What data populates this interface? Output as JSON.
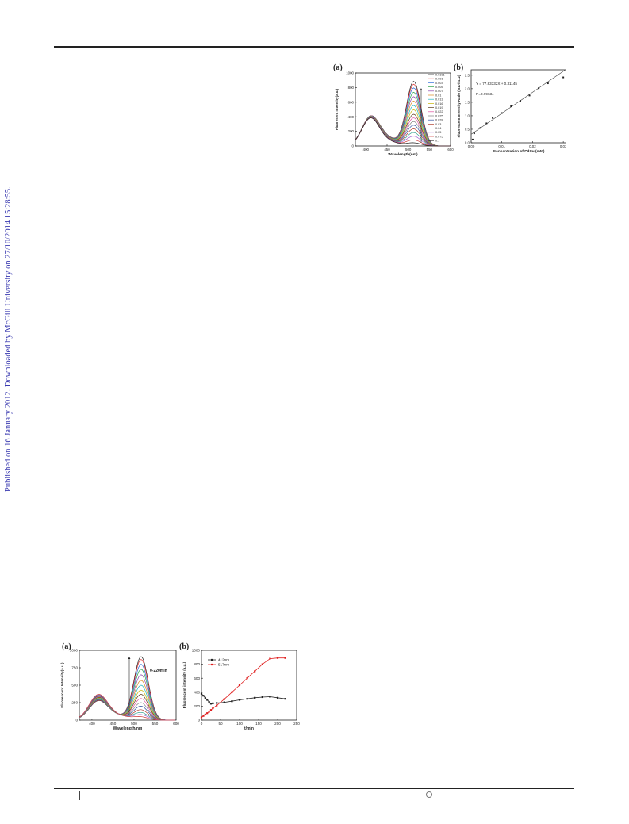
{
  "side_banner": "Published on 16 January 2012. Downloaded by McGill University on 27/10/2014 15:28:55.",
  "figure1": {
    "panel_a": {
      "label": "(a)",
      "chart_data": {
        "type": "line",
        "xlabel": "Wavelength(nm)",
        "ylabel": "Fluoresent Intensity(a.u.)",
        "xlim": [
          375,
          600
        ],
        "ylim": [
          0,
          1000
        ],
        "xticks": [
          400,
          450,
          500,
          550,
          600
        ],
        "yticks": [
          0,
          200,
          400,
          600,
          800,
          1000
        ],
        "legend_position": "top-right",
        "colors": [
          "#222222",
          "#e03030",
          "#2e6fdc",
          "#2aa24a",
          "#8e44ad",
          "#d98a20",
          "#1fb5c0",
          "#c8b400",
          "#5a3a1a",
          "#e050a0",
          "#808080",
          "#3050a0",
          "#b04030",
          "#30a090",
          "#a060d0",
          "#d04040"
        ],
        "series": [
          {
            "name": "0.0101",
            "peak": 880
          },
          {
            "name": "0.001",
            "peak": 840
          },
          {
            "name": "0.003",
            "peak": 790
          },
          {
            "name": "0.005",
            "peak": 730
          },
          {
            "name": "0.007",
            "peak": 670
          },
          {
            "name": "0.01",
            "peak": 610
          },
          {
            "name": "0.013",
            "peak": 550
          },
          {
            "name": "0.016",
            "peak": 490
          },
          {
            "name": "0.019",
            "peak": 430
          },
          {
            "name": "0.022",
            "peak": 380
          },
          {
            "name": "0.025",
            "peak": 330
          },
          {
            "name": "0.028",
            "peak": 280
          },
          {
            "name": "0.03",
            "peak": 230
          },
          {
            "name": "0.04",
            "peak": 180
          },
          {
            "name": "0.05",
            "peak": 130
          },
          {
            "name": "0.075",
            "peak": 80
          },
          {
            "name": "0.1",
            "peak": 40
          }
        ]
      }
    },
    "panel_b": {
      "label": "(b)",
      "chart_data": {
        "type": "scatter",
        "xlabel": "Concentration of PdCu (mM)",
        "ylabel": "Fluorescent Intensity Ratio (I517/I412)",
        "xlim": [
          0.0,
          0.031
        ],
        "ylim": [
          0.0,
          2.7
        ],
        "xticks": [
          0.0,
          0.01,
          0.02,
          0.03
        ],
        "xtick_labels": [
          "0.00",
          "0.01",
          "0.02",
          "0.03"
        ],
        "yticks": [
          0.0,
          0.5,
          1.0,
          1.5,
          2.0,
          2.5
        ],
        "ytick_labels": [
          "0.0",
          "0.5",
          "1.0",
          "1.5",
          "2.0",
          "2.5"
        ],
        "annotations": [
          "Y = 77.83332X + 0.31145",
          "R=0.99634"
        ],
        "fit": {
          "slope": 77.83332,
          "intercept": 0.31145
        },
        "x": [
          0.0005,
          0.001,
          0.003,
          0.005,
          0.007,
          0.01,
          0.013,
          0.016,
          0.019,
          0.022,
          0.025,
          0.03
        ],
        "y": [
          0.12,
          0.35,
          0.55,
          0.72,
          0.92,
          1.1,
          1.35,
          1.55,
          1.75,
          2.02,
          2.2,
          2.42
        ]
      }
    }
  },
  "figure2": {
    "panel_a": {
      "label": "(a)",
      "annotation": "0-220min",
      "chart_data": {
        "type": "line",
        "xlabel": "Wavelength/nm",
        "ylabel": "Fluorescent Intensity(a.u.)",
        "xlim": [
          370,
          600
        ],
        "ylim": [
          0,
          1000
        ],
        "xticks": [
          400,
          450,
          500,
          550,
          600
        ],
        "yticks": [
          0,
          250,
          500,
          750,
          1000
        ],
        "colors": [
          "#222222",
          "#e03030",
          "#2e6fdc",
          "#2aa24a",
          "#8e44ad",
          "#d98a20",
          "#1fb5c0",
          "#c8b400",
          "#5a3a1a",
          "#e050a0",
          "#808080",
          "#3050a0",
          "#b04030",
          "#30a090",
          "#a060d0",
          "#d04040"
        ],
        "series": [
          {
            "peak": 900
          },
          {
            "peak": 860
          },
          {
            "peak": 790
          },
          {
            "peak": 720
          },
          {
            "peak": 640
          },
          {
            "peak": 560
          },
          {
            "peak": 490
          },
          {
            "peak": 420
          },
          {
            "peak": 360
          },
          {
            "peak": 300
          },
          {
            "peak": 240
          },
          {
            "peak": 190
          },
          {
            "peak": 140
          },
          {
            "peak": 100
          },
          {
            "peak": 70
          },
          {
            "peak": 40
          }
        ]
      }
    },
    "panel_b": {
      "label": "(b)",
      "chart_data": {
        "type": "line",
        "xlabel": "t/min",
        "ylabel": "Fluorescent intensity (a.u.)",
        "xlim": [
          0,
          250
        ],
        "ylim": [
          0,
          1000
        ],
        "xticks": [
          0,
          50,
          100,
          150,
          200,
          250
        ],
        "yticks": [
          0,
          200,
          400,
          600,
          800,
          1000
        ],
        "legend_position": "top-left",
        "series": [
          {
            "name": "412nm",
            "color": "#222222",
            "x": [
              0,
              5,
              10,
              15,
              20,
              25,
              30,
              40,
              60,
              80,
              100,
              120,
              140,
              160,
              180,
              200,
              220
            ],
            "y": [
              380,
              350,
              320,
              290,
              260,
              235,
              240,
              245,
              255,
              270,
              290,
              305,
              320,
              330,
              335,
              320,
              305
            ]
          },
          {
            "name": "517nm",
            "color": "#e02020",
            "x": [
              0,
              5,
              10,
              15,
              20,
              25,
              30,
              40,
              60,
              80,
              100,
              120,
              140,
              160,
              180,
              200,
              220
            ],
            "y": [
              40,
              60,
              80,
              100,
              120,
              145,
              170,
              210,
              300,
              400,
              500,
              600,
              700,
              800,
              880,
              890,
              890
            ]
          }
        ]
      }
    }
  }
}
